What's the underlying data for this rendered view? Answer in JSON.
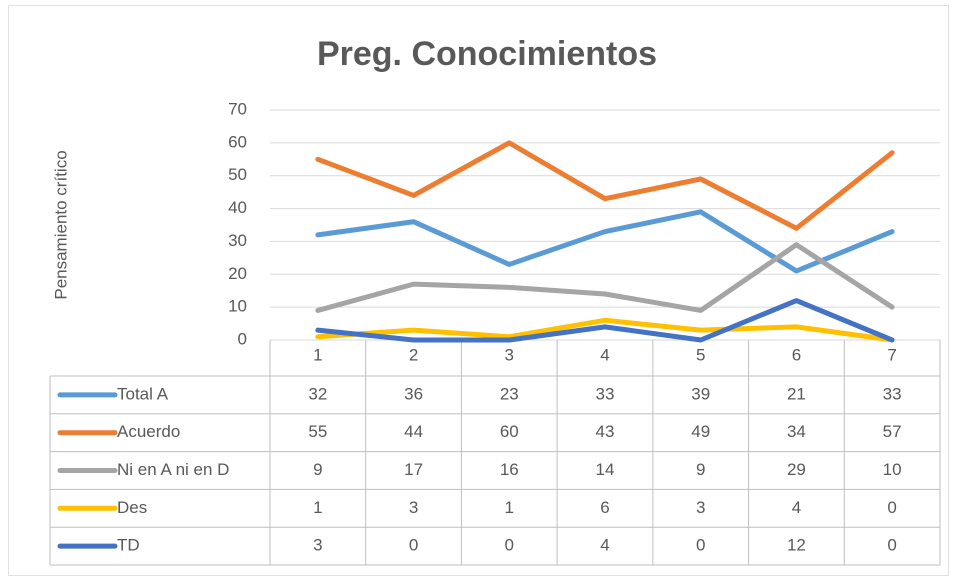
{
  "chart_data": {
    "type": "line",
    "title": "Preg. Conocimientos",
    "y_label": "Pensamiento crítico",
    "categories": [
      "1",
      "2",
      "3",
      "4",
      "5",
      "6",
      "7"
    ],
    "series": [
      {
        "name": "Total A",
        "color": "#5b9bd5",
        "values": [
          32,
          36,
          23,
          33,
          39,
          21,
          33
        ]
      },
      {
        "name": "Acuerdo",
        "color": "#ed7d31",
        "values": [
          55,
          44,
          60,
          43,
          49,
          34,
          57
        ]
      },
      {
        "name": "Ni en A ni en D",
        "color": "#a5a5a5",
        "values": [
          9,
          17,
          16,
          14,
          9,
          29,
          10
        ]
      },
      {
        "name": "Des",
        "color": "#ffc000",
        "values": [
          1,
          3,
          1,
          6,
          3,
          4,
          0
        ]
      },
      {
        "name": "TD",
        "color": "#4472c4",
        "values": [
          3,
          0,
          0,
          4,
          0,
          12,
          0
        ]
      }
    ],
    "ylim": [
      0,
      70
    ],
    "yticks": [
      0,
      10,
      20,
      30,
      40,
      50,
      60,
      70
    ],
    "grid": true,
    "data_table": true
  }
}
